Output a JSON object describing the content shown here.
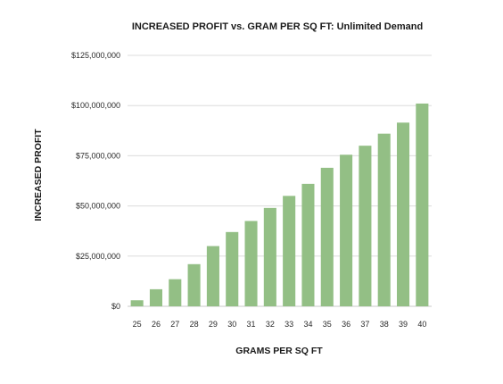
{
  "chart_data": {
    "type": "bar",
    "title": "INCREASED PROFIT vs. GRAM PER SQ FT: Unlimited Demand",
    "xlabel": "GRAMS PER SQ FT",
    "ylabel": "INCREASED PROFIT",
    "categories": [
      "25",
      "26",
      "27",
      "28",
      "29",
      "30",
      "31",
      "32",
      "33",
      "34",
      "35",
      "36",
      "37",
      "38",
      "39",
      "40"
    ],
    "values": [
      3000000,
      8500000,
      13500000,
      21000000,
      30000000,
      37000000,
      42500000,
      49000000,
      55000000,
      61000000,
      69000000,
      75500000,
      80000000,
      86000000,
      91500000,
      101000000
    ],
    "ylim": [
      0,
      125000000
    ],
    "yticks": [
      0,
      25000000,
      50000000,
      75000000,
      100000000,
      125000000
    ],
    "ytick_labels": [
      "$0",
      "$25,000,000",
      "$50,000,000",
      "$75,000,000",
      "$100,000,000",
      "$125,000,000"
    ],
    "grid": true,
    "legend": "none",
    "colors": {
      "bar": "#93bf85",
      "grid": "#dcdcdc",
      "text": "#1a1a1a"
    }
  }
}
